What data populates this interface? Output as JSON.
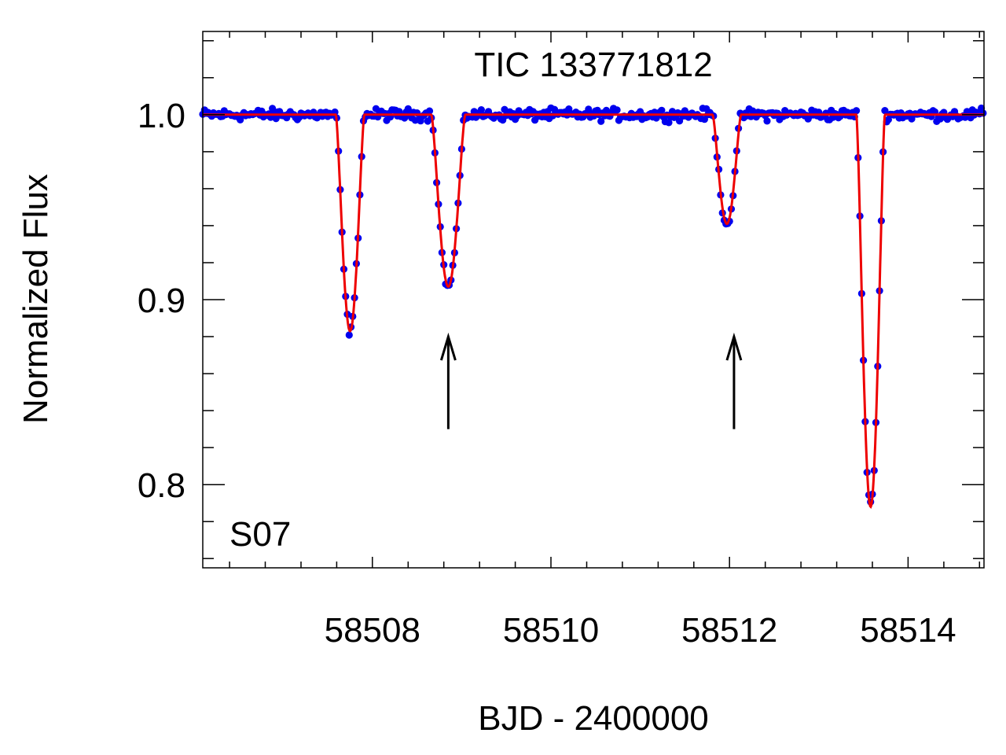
{
  "chart_data": {
    "type": "scatter",
    "title": "TIC 133771812",
    "panel_label": "S07",
    "xlabel": "BJD - 2400000",
    "ylabel": "Normalized Flux",
    "xlim": [
      58506.1,
      58514.85
    ],
    "ylim": [
      0.755,
      1.045
    ],
    "x_ticks": [
      58508,
      58510,
      58512,
      58514
    ],
    "x_tick_labels": [
      "58508",
      "58510",
      "58512",
      "58514"
    ],
    "x_minor_step": 0.4,
    "y_ticks": [
      0.8,
      0.9,
      1.0
    ],
    "y_tick_labels": [
      "0.8",
      "0.9",
      "1.0"
    ],
    "y_minor_step": 0.02,
    "grid": false,
    "colors": {
      "data": "#0000ee",
      "model": "#ee0000",
      "annotation": "#000000"
    },
    "series": [
      {
        "name": "observed flux",
        "kind": "points",
        "color": "#0000ee",
        "cadence_days": 0.02,
        "baseline": 1.0,
        "scatter": 0.0025
      },
      {
        "name": "model",
        "kind": "line",
        "color": "#ee0000",
        "baseline": 1.0
      }
    ],
    "eclipses": [
      {
        "center": 58507.75,
        "depth": 0.117,
        "half_width": 0.16
      },
      {
        "center": 58508.85,
        "depth": 0.093,
        "half_width": 0.19
      },
      {
        "center": 58511.97,
        "depth": 0.059,
        "half_width": 0.16
      },
      {
        "center": 58513.58,
        "depth": 0.212,
        "half_width": 0.16
      }
    ],
    "annotations": [
      {
        "type": "arrow",
        "x": 58508.85,
        "y_from": 0.83,
        "y_to": 0.88
      },
      {
        "type": "arrow",
        "x": 58512.05,
        "y_from": 0.83,
        "y_to": 0.88
      }
    ]
  }
}
